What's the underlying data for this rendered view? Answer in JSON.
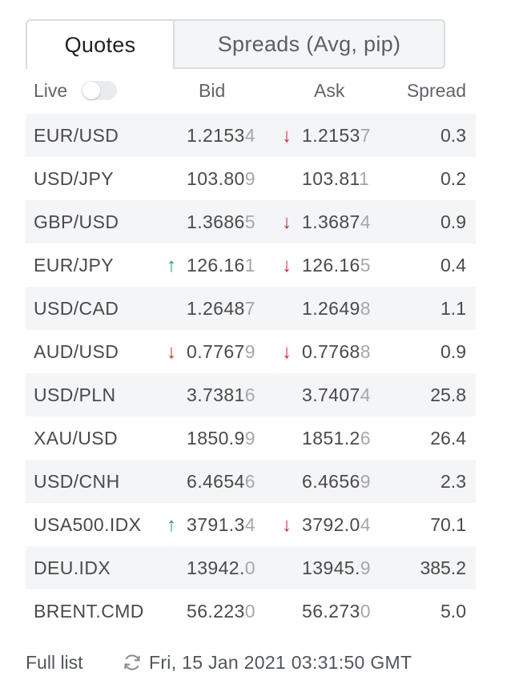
{
  "tabs": {
    "quotes": "Quotes",
    "spreads": "Spreads (Avg, pip)"
  },
  "header": {
    "live": "Live",
    "live_on": false,
    "bid": "Bid",
    "ask": "Ask",
    "spread": "Spread"
  },
  "colors": {
    "up": "#1a9a6a",
    "down": "#d42222",
    "stripe": "#f4f5f7"
  },
  "rows": [
    {
      "symbol": "EUR/USD",
      "bid_main": "1.2153",
      "bid_last": "4",
      "bid_dir": "",
      "ask_main": "1.2153",
      "ask_last": "7",
      "ask_dir": "down",
      "spread": "0.3"
    },
    {
      "symbol": "USD/JPY",
      "bid_main": "103.80",
      "bid_last": "9",
      "bid_dir": "",
      "ask_main": "103.81",
      "ask_last": "1",
      "ask_dir": "",
      "spread": "0.2"
    },
    {
      "symbol": "GBP/USD",
      "bid_main": "1.3686",
      "bid_last": "5",
      "bid_dir": "",
      "ask_main": "1.3687",
      "ask_last": "4",
      "ask_dir": "down",
      "spread": "0.9"
    },
    {
      "symbol": "EUR/JPY",
      "bid_main": "126.16",
      "bid_last": "1",
      "bid_dir": "up",
      "ask_main": "126.16",
      "ask_last": "5",
      "ask_dir": "down",
      "spread": "0.4"
    },
    {
      "symbol": "USD/CAD",
      "bid_main": "1.2648",
      "bid_last": "7",
      "bid_dir": "",
      "ask_main": "1.2649",
      "ask_last": "8",
      "ask_dir": "",
      "spread": "1.1"
    },
    {
      "symbol": "AUD/USD",
      "bid_main": "0.7767",
      "bid_last": "9",
      "bid_dir": "down",
      "ask_main": "0.7768",
      "ask_last": "8",
      "ask_dir": "down",
      "spread": "0.9"
    },
    {
      "symbol": "USD/PLN",
      "bid_main": "3.7381",
      "bid_last": "6",
      "bid_dir": "",
      "ask_main": "3.7407",
      "ask_last": "4",
      "ask_dir": "",
      "spread": "25.8"
    },
    {
      "symbol": "XAU/USD",
      "bid_main": "1850.9",
      "bid_last": "9",
      "bid_dir": "",
      "ask_main": "1851.2",
      "ask_last": "6",
      "ask_dir": "",
      "spread": "26.4"
    },
    {
      "symbol": "USD/CNH",
      "bid_main": "6.4654",
      "bid_last": "6",
      "bid_dir": "",
      "ask_main": "6.4656",
      "ask_last": "9",
      "ask_dir": "",
      "spread": "2.3"
    },
    {
      "symbol": "USA500.IDX",
      "bid_main": "3791.3",
      "bid_last": "4",
      "bid_dir": "up",
      "ask_main": "3792.0",
      "ask_last": "4",
      "ask_dir": "down",
      "spread": "70.1"
    },
    {
      "symbol": "DEU.IDX",
      "bid_main": "13942.",
      "bid_last": "0",
      "bid_dir": "",
      "ask_main": "13945.",
      "ask_last": "9",
      "ask_dir": "",
      "spread": "385.2"
    },
    {
      "symbol": "BRENT.CMD",
      "bid_main": "56.223",
      "bid_last": "0",
      "bid_dir": "",
      "ask_main": "56.273",
      "ask_last": "0",
      "ask_dir": "",
      "spread": "5.0"
    }
  ],
  "footer": {
    "full_list": "Full list",
    "refresh_icon": "refresh-icon",
    "timestamp": "Fri, 15 Jan 2021 03:31:50 GMT"
  }
}
